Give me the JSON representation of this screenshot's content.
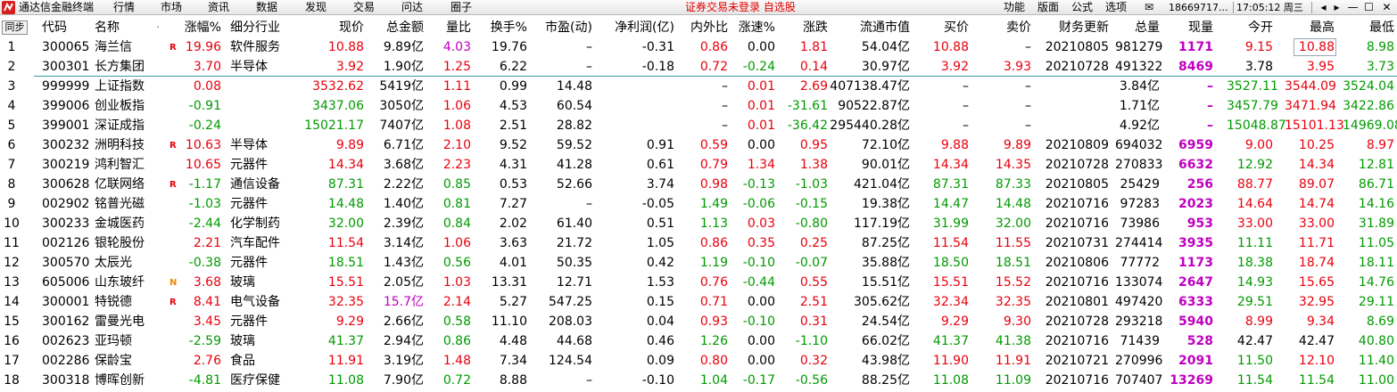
{
  "titlebar": {
    "app_name": "通达信金融终端",
    "menus": [
      "行情",
      "市场",
      "资讯",
      "数据",
      "发现",
      "交易",
      "问达",
      "圈子"
    ],
    "warning": "证券交易未登录  自选股",
    "right_menus": [
      "功能",
      "版面",
      "公式",
      "选项"
    ],
    "account": "18669717...",
    "datetime": "17:05:12 周三"
  },
  "header": {
    "sync": "同步",
    "columns": [
      "代码",
      "名称",
      "涨幅%",
      "细分行业",
      "现价",
      "总金额",
      "量比",
      "换手%",
      "市盈(动)",
      "净利润(亿)",
      "内外比",
      "涨速%",
      "涨跌",
      "流通市值",
      "买价",
      "卖价",
      "财务更新",
      "总量",
      "现量",
      "今开",
      "最高",
      "最低"
    ],
    "name_dot": "·"
  },
  "colors": {
    "up": "#e8000d",
    "down": "#009a00",
    "flat": "#000000",
    "volume": "#c000c0"
  },
  "rows": [
    {
      "idx": "1",
      "code": "300065",
      "name": "海兰信",
      "mark": "R",
      "chg": "19.96",
      "ind": "软件服务",
      "price": "10.88",
      "amt": "9.89亿",
      "vr": "4.03",
      "turn": "19.76",
      "pe": "–",
      "np": "-0.31",
      "io": "0.86",
      "spd": "0.00",
      "diff": "1.81",
      "mcap": "54.04亿",
      "bid": "10.88",
      "ask": "–",
      "fin": "20210805",
      "vol": "981279",
      "cur": "1171",
      "open": "9.15",
      "high": "10.88",
      "low": "8.98"
    },
    {
      "idx": "2",
      "code": "300301",
      "name": "长方集团",
      "mark": "",
      "chg": "3.70",
      "ind": "半导体",
      "price": "3.92",
      "amt": "1.90亿",
      "vr": "1.25",
      "turn": "6.22",
      "pe": "–",
      "np": "-0.18",
      "io": "0.72",
      "spd": "-0.24",
      "diff": "0.14",
      "mcap": "30.97亿",
      "bid": "3.92",
      "ask": "3.93",
      "fin": "20210728",
      "vol": "491322",
      "cur": "8469",
      "open": "3.78",
      "high": "3.95",
      "low": "3.73"
    },
    {
      "idx": "3",
      "code": "999999",
      "name": "上证指数",
      "mark": "",
      "chg": "0.08",
      "ind": "",
      "price": "3532.62",
      "amt": "5419亿",
      "vr": "1.11",
      "turn": "0.99",
      "pe": "14.48",
      "np": "",
      "io": "–",
      "spd": "0.01",
      "diff": "2.69",
      "mcap": "407138.47亿",
      "bid": "–",
      "ask": "–",
      "fin": "",
      "vol": "3.84亿",
      "cur": "–",
      "open": "3527.11",
      "high": "3544.09",
      "low": "3524.04"
    },
    {
      "idx": "4",
      "code": "399006",
      "name": "创业板指",
      "mark": "",
      "chg": "-0.91",
      "ind": "",
      "price": "3437.06",
      "amt": "3050亿",
      "vr": "1.06",
      "turn": "4.53",
      "pe": "60.54",
      "np": "",
      "io": "–",
      "spd": "0.01",
      "diff": "-31.61",
      "mcap": "90522.87亿",
      "bid": "–",
      "ask": "–",
      "fin": "",
      "vol": "1.71亿",
      "cur": "–",
      "open": "3457.79",
      "high": "3471.94",
      "low": "3422.86"
    },
    {
      "idx": "5",
      "code": "399001",
      "name": "深证成指",
      "mark": "",
      "chg": "-0.24",
      "ind": "",
      "price": "15021.17",
      "amt": "7407亿",
      "vr": "1.08",
      "turn": "2.51",
      "pe": "28.82",
      "np": "",
      "io": "–",
      "spd": "0.01",
      "diff": "-36.42",
      "mcap": "295440.28亿",
      "bid": "–",
      "ask": "–",
      "fin": "",
      "vol": "4.92亿",
      "cur": "–",
      "open": "15048.87",
      "high": "15101.13",
      "low": "14969.08"
    },
    {
      "idx": "6",
      "code": "300232",
      "name": "洲明科技",
      "mark": "R",
      "chg": "10.63",
      "ind": "半导体",
      "price": "9.89",
      "amt": "6.71亿",
      "vr": "2.10",
      "turn": "9.52",
      "pe": "59.52",
      "np": "0.91",
      "io": "0.59",
      "spd": "0.00",
      "diff": "0.95",
      "mcap": "72.10亿",
      "bid": "9.88",
      "ask": "9.89",
      "fin": "20210809",
      "vol": "694032",
      "cur": "6959",
      "open": "9.00",
      "high": "10.25",
      "low": "8.97"
    },
    {
      "idx": "7",
      "code": "300219",
      "name": "鸿利智汇",
      "mark": "",
      "chg": "10.65",
      "ind": "元器件",
      "price": "14.34",
      "amt": "3.68亿",
      "vr": "2.23",
      "turn": "4.31",
      "pe": "41.28",
      "np": "0.61",
      "io": "0.79",
      "spd": "1.34",
      "diff": "1.38",
      "mcap": "90.01亿",
      "bid": "14.34",
      "ask": "14.35",
      "fin": "20210728",
      "vol": "270833",
      "cur": "6632",
      "open": "12.92",
      "high": "14.34",
      "low": "12.81"
    },
    {
      "idx": "8",
      "code": "300628",
      "name": "亿联网络",
      "mark": "R",
      "chg": "-1.17",
      "ind": "通信设备",
      "price": "87.31",
      "amt": "2.22亿",
      "vr": "0.85",
      "turn": "0.53",
      "pe": "52.66",
      "np": "3.74",
      "io": "0.98",
      "spd": "-0.13",
      "diff": "-1.03",
      "mcap": "421.04亿",
      "bid": "87.31",
      "ask": "87.33",
      "fin": "20210805",
      "vol": "25429",
      "cur": "256",
      "open": "88.77",
      "high": "89.07",
      "low": "86.71"
    },
    {
      "idx": "9",
      "code": "002902",
      "name": "铭普光磁",
      "mark": "",
      "chg": "-1.03",
      "ind": "元器件",
      "price": "14.48",
      "amt": "1.40亿",
      "vr": "0.81",
      "turn": "7.27",
      "pe": "–",
      "np": "-0.05",
      "io": "1.49",
      "spd": "-0.06",
      "diff": "-0.15",
      "mcap": "19.38亿",
      "bid": "14.47",
      "ask": "14.48",
      "fin": "20210716",
      "vol": "97283",
      "cur": "2023",
      "open": "14.64",
      "high": "14.74",
      "low": "14.16"
    },
    {
      "idx": "10",
      "code": "300233",
      "name": "金城医药",
      "mark": "",
      "chg": "-2.44",
      "ind": "化学制药",
      "price": "32.00",
      "amt": "2.39亿",
      "vr": "0.84",
      "turn": "2.02",
      "pe": "61.40",
      "np": "0.51",
      "io": "1.13",
      "spd": "0.03",
      "diff": "-0.80",
      "mcap": "117.19亿",
      "bid": "31.99",
      "ask": "32.00",
      "fin": "20210716",
      "vol": "73986",
      "cur": "953",
      "open": "33.00",
      "high": "33.00",
      "low": "31.89"
    },
    {
      "idx": "11",
      "code": "002126",
      "name": "银轮股份",
      "mark": "",
      "chg": "2.21",
      "ind": "汽车配件",
      "price": "11.54",
      "amt": "3.14亿",
      "vr": "1.06",
      "turn": "3.63",
      "pe": "21.72",
      "np": "1.05",
      "io": "0.86",
      "spd": "0.35",
      "diff": "0.25",
      "mcap": "87.25亿",
      "bid": "11.54",
      "ask": "11.55",
      "fin": "20210731",
      "vol": "274414",
      "cur": "3935",
      "open": "11.11",
      "high": "11.71",
      "low": "11.05"
    },
    {
      "idx": "12",
      "code": "300570",
      "name": "太辰光",
      "mark": "",
      "chg": "-0.38",
      "ind": "元器件",
      "price": "18.51",
      "amt": "1.43亿",
      "vr": "0.56",
      "turn": "4.01",
      "pe": "50.35",
      "np": "0.42",
      "io": "1.19",
      "spd": "-0.10",
      "diff": "-0.07",
      "mcap": "35.88亿",
      "bid": "18.50",
      "ask": "18.51",
      "fin": "20210806",
      "vol": "77772",
      "cur": "1173",
      "open": "18.38",
      "high": "18.74",
      "low": "18.11"
    },
    {
      "idx": "13",
      "code": "605006",
      "name": "山东玻纤",
      "mark": "N",
      "chg": "3.68",
      "ind": "玻璃",
      "price": "15.51",
      "amt": "2.05亿",
      "vr": "1.03",
      "turn": "13.31",
      "pe": "12.71",
      "np": "1.53",
      "io": "0.76",
      "spd": "-0.44",
      "diff": "0.55",
      "mcap": "15.51亿",
      "bid": "15.51",
      "ask": "15.52",
      "fin": "20210716",
      "vol": "133074",
      "cur": "2647",
      "open": "14.93",
      "high": "15.65",
      "low": "14.76"
    },
    {
      "idx": "14",
      "code": "300001",
      "name": "特锐德",
      "mark": "R",
      "chg": "8.41",
      "ind": "电气设备",
      "price": "32.35",
      "amt": "15.7亿",
      "vr": "2.14",
      "turn": "5.27",
      "pe": "547.25",
      "np": "0.15",
      "io": "0.71",
      "spd": "0.00",
      "diff": "2.51",
      "mcap": "305.62亿",
      "bid": "32.34",
      "ask": "32.35",
      "fin": "20210801",
      "vol": "497420",
      "cur": "6333",
      "open": "29.51",
      "high": "32.95",
      "low": "29.11"
    },
    {
      "idx": "15",
      "code": "300162",
      "name": "雷曼光电",
      "mark": "",
      "chg": "3.45",
      "ind": "元器件",
      "price": "9.29",
      "amt": "2.66亿",
      "vr": "0.58",
      "turn": "11.10",
      "pe": "208.03",
      "np": "0.04",
      "io": "0.93",
      "spd": "-0.10",
      "diff": "0.31",
      "mcap": "24.54亿",
      "bid": "9.29",
      "ask": "9.30",
      "fin": "20210728",
      "vol": "293218",
      "cur": "5940",
      "open": "8.99",
      "high": "9.34",
      "low": "8.69"
    },
    {
      "idx": "16",
      "code": "002623",
      "name": "亚玛顿",
      "mark": "",
      "chg": "-2.59",
      "ind": "玻璃",
      "price": "41.37",
      "amt": "2.94亿",
      "vr": "0.86",
      "turn": "4.48",
      "pe": "44.68",
      "np": "0.46",
      "io": "1.26",
      "spd": "0.00",
      "diff": "-1.10",
      "mcap": "66.02亿",
      "bid": "41.37",
      "ask": "41.38",
      "fin": "20210716",
      "vol": "71439",
      "cur": "528",
      "open": "42.47",
      "high": "42.47",
      "low": "40.80"
    },
    {
      "idx": "17",
      "code": "002286",
      "name": "保龄宝",
      "mark": "",
      "chg": "2.76",
      "ind": "食品",
      "price": "11.91",
      "amt": "3.19亿",
      "vr": "1.48",
      "turn": "7.34",
      "pe": "124.54",
      "np": "0.09",
      "io": "0.80",
      "spd": "0.00",
      "diff": "0.32",
      "mcap": "43.98亿",
      "bid": "11.90",
      "ask": "11.91",
      "fin": "20210721",
      "vol": "270996",
      "cur": "2091",
      "open": "11.50",
      "high": "12.10",
      "low": "11.40"
    },
    {
      "idx": "18",
      "code": "300318",
      "name": "博晖创新",
      "mark": "",
      "chg": "-4.81",
      "ind": "医疗保健",
      "price": "11.08",
      "amt": "7.90亿",
      "vr": "0.72",
      "turn": "8.88",
      "pe": "–",
      "np": "-0.10",
      "io": "1.04",
      "spd": "-0.17",
      "diff": "-0.56",
      "mcap": "88.25亿",
      "bid": "11.08",
      "ask": "11.09",
      "fin": "20210716",
      "vol": "707407",
      "cur": "13269",
      "open": "11.54",
      "high": "11.54",
      "low": "11.00"
    }
  ]
}
